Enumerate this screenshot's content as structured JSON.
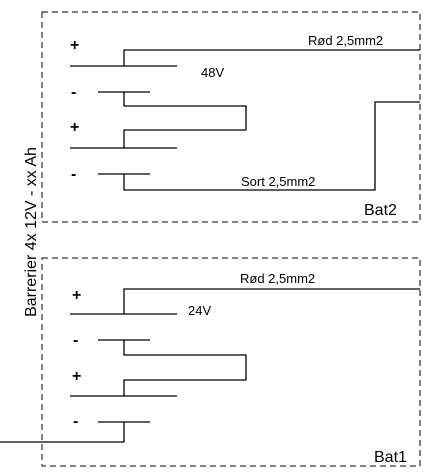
{
  "title": "Barrerier 4x 12V - xx Ah",
  "banks": [
    {
      "name": "Bat2",
      "voltage": "48V",
      "positive_wire": "Rød 2,5mm2",
      "negative_wire": "Sort 2,5mm2",
      "cells": [
        {
          "plus": "+",
          "minus": "-"
        },
        {
          "plus": "+",
          "minus": "-"
        }
      ]
    },
    {
      "name": "Bat1",
      "voltage": "24V",
      "positive_wire": "Rød 2,5mm2",
      "cells": [
        {
          "plus": "+",
          "minus": "-"
        },
        {
          "plus": "+",
          "minus": "-"
        }
      ]
    }
  ]
}
